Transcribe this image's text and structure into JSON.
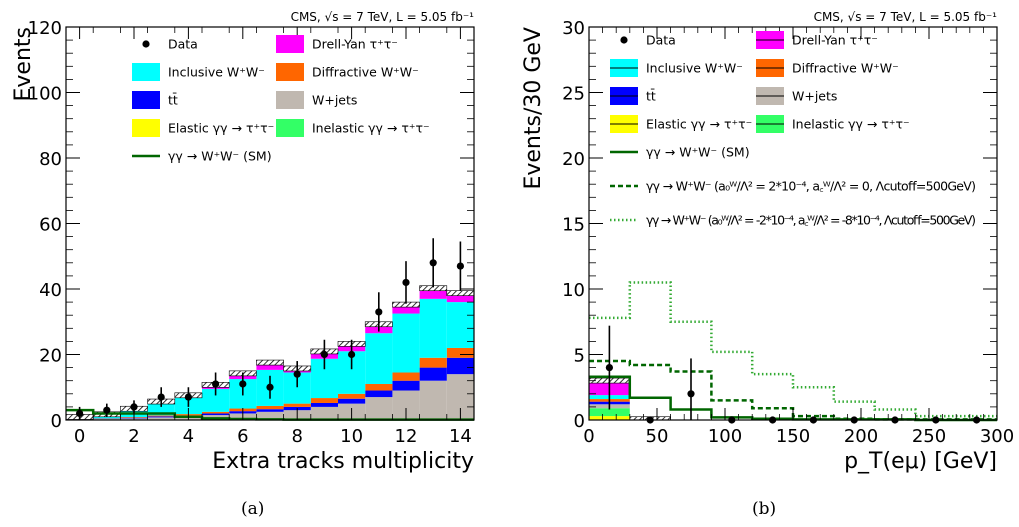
{
  "panels": [
    {
      "caption": "(a)",
      "header": "CMS, √s = 7 TeV, L = 5.05 fb⁻¹"
    },
    {
      "caption": "(b)",
      "header": "CMS, √s = 7 TeV, L = 5.05 fb⁻¹"
    }
  ],
  "colors": {
    "drell_yan": "#ff00ff",
    "inclusive_ww": "#00ffff",
    "diffractive_ww": "#ff6600",
    "ttbar": "#0000ff",
    "wjets": "#c0b8b0",
    "elastic": "#ffff00",
    "inelastic": "#33ff66",
    "sm_line": "#006600",
    "aqgc_line": "#33aa33"
  },
  "chart_data": [
    {
      "type": "bar",
      "subtype": "stacked-histogram",
      "xlabel": "Extra tracks multiplicity",
      "ylabel": "Events",
      "xlim": [
        -0.5,
        14.5
      ],
      "ylim": [
        0,
        120
      ],
      "xticks": [
        0,
        2,
        4,
        6,
        8,
        10,
        12,
        14
      ],
      "yticks": [
        0,
        20,
        40,
        60,
        80,
        100,
        120
      ],
      "categories": [
        0,
        1,
        2,
        3,
        4,
        5,
        6,
        7,
        8,
        9,
        10,
        11,
        12,
        13,
        14
      ],
      "series": [
        {
          "name": "W+jets",
          "color_key": "wjets",
          "values": [
            0.2,
            0.3,
            0.5,
            0.8,
            1,
            1.5,
            2,
            2.5,
            3,
            4,
            5,
            7,
            9,
            12,
            14
          ]
        },
        {
          "name": "tt̄",
          "color_key": "ttbar",
          "values": [
            0.1,
            0.1,
            0.2,
            0.3,
            0.4,
            0.5,
            0.7,
            0.8,
            1,
            1.2,
            1.5,
            2,
            3,
            4,
            5
          ]
        },
        {
          "name": "Diffractive W⁺W⁻",
          "color_key": "diffractive_ww",
          "values": [
            0.1,
            0.1,
            0.2,
            0.3,
            0.4,
            0.5,
            0.8,
            1,
            1,
            1.5,
            1.5,
            2,
            2.5,
            3,
            3
          ]
        },
        {
          "name": "Elastic γγ → τ⁺τ⁻",
          "color_key": "elastic",
          "values": [
            0,
            0,
            0,
            0,
            0,
            0,
            0,
            0,
            0,
            0,
            0,
            0,
            0,
            0,
            0
          ]
        },
        {
          "name": "Inelastic γγ → τ⁺τ⁻",
          "color_key": "inelastic",
          "values": [
            0,
            0,
            0,
            0,
            0,
            0,
            0,
            0,
            0,
            0,
            0,
            0,
            0,
            0,
            0
          ]
        },
        {
          "name": "Inclusive W⁺W⁻",
          "color_key": "inclusive_ww",
          "values": [
            1,
            1.5,
            2.5,
            4,
            5,
            7,
            9,
            11,
            9.5,
            12,
            13,
            15.5,
            18,
            18,
            14
          ]
        },
        {
          "name": "Drell-Yan τ⁺τ⁻",
          "color_key": "drell_yan",
          "values": [
            0.3,
            0.5,
            0.8,
            1,
            1.5,
            2,
            2.5,
            3,
            2,
            3,
            3,
            3.5,
            3.5,
            4,
            3.5
          ]
        }
      ],
      "sm_line": {
        "name": "γγ → W⁺W⁻ (SM)",
        "values": [
          3,
          2,
          2,
          2,
          1,
          0.5,
          0.3,
          0.2,
          0.1,
          0.1,
          0.1,
          0.1,
          0.1,
          0.1,
          0.1
        ]
      },
      "data_points": {
        "name": "Data",
        "x": [
          0,
          1,
          2,
          3,
          4,
          5,
          6,
          7,
          8,
          9,
          10,
          11,
          12,
          13,
          14
        ],
        "y": [
          2,
          3,
          4,
          7,
          7,
          11,
          11,
          10,
          14,
          20,
          20,
          33,
          42,
          48,
          47
        ],
        "err": [
          2,
          2,
          2,
          3,
          3,
          3.5,
          3.5,
          3.5,
          4,
          4.5,
          4.5,
          6,
          6.5,
          7.5,
          7.5
        ]
      },
      "legend": [
        {
          "label": "Data",
          "style": "dot"
        },
        {
          "label": "Drell-Yan τ⁺τ⁻",
          "style": "box",
          "color_key": "drell_yan"
        },
        {
          "label": "Inclusive W⁺W⁻",
          "style": "box",
          "color_key": "inclusive_ww"
        },
        {
          "label": "Diffractive W⁺W⁻",
          "style": "box",
          "color_key": "diffractive_ww"
        },
        {
          "label": "tt̄",
          "style": "box",
          "color_key": "ttbar"
        },
        {
          "label": "W+jets",
          "style": "box",
          "color_key": "wjets"
        },
        {
          "label": "Elastic γγ → τ⁺τ⁻",
          "style": "box",
          "color_key": "elastic"
        },
        {
          "label": "Inelastic γγ → τ⁺τ⁻",
          "style": "box",
          "color_key": "inelastic"
        },
        {
          "label": "γγ → W⁺W⁻ (SM)",
          "style": "line",
          "color_key": "sm_line"
        }
      ]
    },
    {
      "type": "bar",
      "subtype": "stacked-histogram",
      "xlabel": "p_T(eμ) [GeV]",
      "ylabel": "Events/30 GeV",
      "xlim": [
        0,
        300
      ],
      "ylim": [
        0,
        30
      ],
      "xticks": [
        0,
        50,
        100,
        150,
        200,
        250,
        300
      ],
      "yticks": [
        0,
        5,
        10,
        15,
        20,
        25,
        30
      ],
      "bin_edges": [
        0,
        30,
        60,
        90,
        120,
        150,
        180,
        210,
        240,
        270,
        300
      ],
      "series": [
        {
          "name": "Elastic γγ → τ⁺τ⁻",
          "color_key": "elastic",
          "values": [
            0.3,
            0,
            0,
            0,
            0,
            0,
            0,
            0,
            0,
            0
          ]
        },
        {
          "name": "Inelastic γγ → τ⁺τ⁻",
          "color_key": "inelastic",
          "values": [
            0.6,
            0,
            0,
            0,
            0,
            0,
            0,
            0,
            0,
            0
          ]
        },
        {
          "name": "W+jets",
          "color_key": "wjets",
          "values": [
            0.3,
            0,
            0,
            0,
            0,
            0,
            0,
            0,
            0,
            0
          ]
        },
        {
          "name": "tt̄",
          "color_key": "ttbar",
          "values": [
            0.2,
            0,
            0,
            0,
            0,
            0,
            0,
            0,
            0,
            0
          ]
        },
        {
          "name": "Diffractive W⁺W⁻",
          "color_key": "diffractive_ww",
          "values": [
            0.2,
            0,
            0,
            0,
            0,
            0,
            0,
            0,
            0,
            0
          ]
        },
        {
          "name": "Inclusive W⁺W⁻",
          "color_key": "inclusive_ww",
          "values": [
            0.3,
            0.2,
            0,
            0,
            0,
            0,
            0,
            0,
            0,
            0
          ]
        },
        {
          "name": "Drell-Yan τ⁺τ⁻",
          "color_key": "drell_yan",
          "values": [
            1.3,
            0.05,
            0,
            0,
            0,
            0,
            0,
            0,
            0,
            0
          ]
        }
      ],
      "sm_line": {
        "name": "γγ → W⁺W⁻ (SM)",
        "values": [
          3.3,
          1.7,
          0.8,
          0.2,
          0.1,
          0.05,
          0.05,
          0.05,
          0,
          0
        ]
      },
      "aqgc_1": {
        "name": "a0/Λ² = 2*10⁻⁴, aC/Λ² = 0",
        "values": [
          4.5,
          4.2,
          3.7,
          1.5,
          0.9,
          0.3,
          0.1,
          0.05,
          0.05,
          0.05
        ]
      },
      "aqgc_2": {
        "name": "a0/Λ² = -2*10⁻⁴, aC/Λ² = -8*10⁻⁴",
        "values": [
          7.8,
          10.5,
          7.5,
          5.2,
          3.5,
          2.5,
          1.4,
          0.8,
          0.3,
          0.3
        ]
      },
      "data_points": {
        "name": "Data",
        "x": [
          15,
          45,
          75,
          105,
          135,
          165,
          195,
          225,
          255,
          285
        ],
        "y": [
          4,
          0,
          2,
          0,
          0,
          0,
          0,
          0,
          0,
          0
        ],
        "err": [
          3.2,
          0,
          2.7,
          0,
          0,
          0,
          0,
          0,
          0,
          0
        ]
      },
      "legend": [
        {
          "label": "Data",
          "style": "dot"
        },
        {
          "label": "Drell-Yan τ⁺τ⁻",
          "style": "box",
          "color_key": "drell_yan"
        },
        {
          "label": "Inclusive W⁺W⁻",
          "style": "box",
          "color_key": "inclusive_ww"
        },
        {
          "label": "Diffractive W⁺W⁻",
          "style": "box",
          "color_key": "diffractive_ww"
        },
        {
          "label": "tt̄",
          "style": "box",
          "color_key": "ttbar"
        },
        {
          "label": "W+jets",
          "style": "box",
          "color_key": "wjets"
        },
        {
          "label": "Elastic γγ → τ⁺τ⁻",
          "style": "box",
          "color_key": "elastic"
        },
        {
          "label": "Inelastic γγ → τ⁺τ⁻",
          "style": "box",
          "color_key": "inelastic"
        },
        {
          "label": "γγ → W⁺W⁻ (SM)",
          "style": "line",
          "color_key": "sm_line"
        },
        {
          "label": "γγ → W⁺W⁻ (a₀ᵂ/Λ² = 2*10⁻⁴, a꜀ᵂ/Λ² = 0, Λcutoff=500GeV)",
          "style": "dash",
          "color_key": "sm_line"
        },
        {
          "label": "γγ → W⁺W⁻ (a₀ᵂ/Λ² = -2*10⁻⁴, a꜀ᵂ/Λ² = -8*10⁻⁴, Λcutoff=500GeV)",
          "style": "dot-line",
          "color_key": "aqgc_line"
        }
      ]
    }
  ]
}
